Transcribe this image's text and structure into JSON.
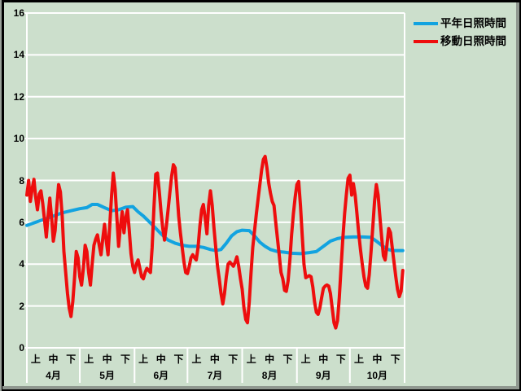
{
  "app": {
    "background_color": "#ccdfcc",
    "frame_color": "#000000",
    "bevel_color": "#8f978f",
    "gridline_color": "#ffffff",
    "text_color": "#000000"
  },
  "legend": {
    "items": [
      {
        "label": "平年日照時間",
        "color": "#12a3e0"
      },
      {
        "label": "移動日照時間",
        "color": "#ee0d0d"
      }
    ]
  },
  "chart_data": {
    "type": "line",
    "title": "",
    "xlabel": "",
    "ylabel": "",
    "ylim": [
      0,
      16
    ],
    "yticks": [
      0,
      2,
      4,
      6,
      8,
      10,
      12,
      14,
      16
    ],
    "grid": true,
    "legend_position": "top-right",
    "x_axis": {
      "unit": "day-of-season (April 1 = 0)",
      "period_labels": [
        "上",
        "中",
        "下"
      ],
      "months": [
        {
          "label": "4月",
          "days": 30
        },
        {
          "label": "5月",
          "days": 31
        },
        {
          "label": "6月",
          "days": 30
        },
        {
          "label": "7月",
          "days": 31
        },
        {
          "label": "8月",
          "days": 31
        },
        {
          "label": "9月",
          "days": 30
        },
        {
          "label": "10月",
          "days": 31
        }
      ]
    },
    "series": [
      {
        "name": "平年日照時間",
        "color": "#12a3e0",
        "stroke_width": 4,
        "points": [
          [
            0,
            5.85
          ],
          [
            5,
            6.0
          ],
          [
            10,
            6.15
          ],
          [
            15,
            6.3
          ],
          [
            20,
            6.45
          ],
          [
            25,
            6.55
          ],
          [
            30,
            6.65
          ],
          [
            34,
            6.7
          ],
          [
            37,
            6.85
          ],
          [
            40,
            6.85
          ],
          [
            44,
            6.7
          ],
          [
            48,
            6.55
          ],
          [
            52,
            6.6
          ],
          [
            56,
            6.72
          ],
          [
            60,
            6.75
          ],
          [
            63,
            6.5
          ],
          [
            66,
            6.3
          ],
          [
            69,
            6.05
          ],
          [
            72,
            5.8
          ],
          [
            76,
            5.45
          ],
          [
            80,
            5.15
          ],
          [
            84,
            5.0
          ],
          [
            88,
            4.9
          ],
          [
            92,
            4.85
          ],
          [
            96,
            4.85
          ],
          [
            100,
            4.8
          ],
          [
            104,
            4.7
          ],
          [
            107,
            4.65
          ],
          [
            110,
            4.7
          ],
          [
            113,
            5.0
          ],
          [
            116,
            5.35
          ],
          [
            119,
            5.55
          ],
          [
            122,
            5.62
          ],
          [
            126,
            5.6
          ],
          [
            129,
            5.35
          ],
          [
            132,
            5.05
          ],
          [
            135,
            4.85
          ],
          [
            138,
            4.7
          ],
          [
            142,
            4.6
          ],
          [
            146,
            4.57
          ],
          [
            150,
            4.52
          ],
          [
            155,
            4.5
          ],
          [
            160,
            4.55
          ],
          [
            164,
            4.6
          ],
          [
            168,
            4.85
          ],
          [
            172,
            5.1
          ],
          [
            176,
            5.22
          ],
          [
            180,
            5.28
          ],
          [
            185,
            5.3
          ],
          [
            190,
            5.3
          ],
          [
            195,
            5.28
          ],
          [
            198,
            5.1
          ],
          [
            201,
            4.9
          ],
          [
            204,
            4.72
          ],
          [
            207,
            4.65
          ],
          [
            210,
            4.65
          ],
          [
            213,
            4.65
          ]
        ]
      },
      {
        "name": "移動日照時間",
        "color": "#ee0d0d",
        "stroke_width": 4,
        "points": [
          [
            0,
            7.3
          ],
          [
            1,
            8.0
          ],
          [
            2,
            7.0
          ],
          [
            3,
            7.6
          ],
          [
            4,
            8.05
          ],
          [
            5,
            7.2
          ],
          [
            6,
            6.6
          ],
          [
            7,
            7.35
          ],
          [
            8,
            7.5
          ],
          [
            9,
            6.9
          ],
          [
            10,
            6.1
          ],
          [
            11,
            5.3
          ],
          [
            12,
            6.3
          ],
          [
            13,
            7.15
          ],
          [
            14,
            6.2
          ],
          [
            15,
            5.1
          ],
          [
            16,
            5.6
          ],
          [
            17,
            6.8
          ],
          [
            18,
            7.8
          ],
          [
            19,
            7.45
          ],
          [
            20,
            6.3
          ],
          [
            21,
            4.6
          ],
          [
            22,
            3.6
          ],
          [
            23,
            2.6
          ],
          [
            24,
            1.9
          ],
          [
            25,
            1.5
          ],
          [
            26,
            2.2
          ],
          [
            27,
            3.3
          ],
          [
            28,
            4.6
          ],
          [
            29,
            4.3
          ],
          [
            30,
            3.4
          ],
          [
            31,
            3.0
          ],
          [
            32,
            3.8
          ],
          [
            33,
            4.9
          ],
          [
            34,
            4.6
          ],
          [
            35,
            3.6
          ],
          [
            36,
            3.0
          ],
          [
            37,
            4.0
          ],
          [
            38,
            4.9
          ],
          [
            39,
            5.2
          ],
          [
            40,
            5.4
          ],
          [
            41,
            4.9
          ],
          [
            42,
            4.45
          ],
          [
            43,
            5.2
          ],
          [
            44,
            5.9
          ],
          [
            45,
            5.1
          ],
          [
            46,
            4.45
          ],
          [
            47,
            5.9
          ],
          [
            48,
            7.3
          ],
          [
            49,
            8.35
          ],
          [
            50,
            7.6
          ],
          [
            51,
            6.2
          ],
          [
            52,
            4.85
          ],
          [
            53,
            5.8
          ],
          [
            54,
            6.5
          ],
          [
            55,
            5.5
          ],
          [
            56,
            6.2
          ],
          [
            57,
            6.6
          ],
          [
            58,
            5.6
          ],
          [
            59,
            4.5
          ],
          [
            60,
            3.9
          ],
          [
            61,
            3.6
          ],
          [
            62,
            4.0
          ],
          [
            63,
            4.2
          ],
          [
            64,
            3.8
          ],
          [
            65,
            3.4
          ],
          [
            66,
            3.3
          ],
          [
            67,
            3.6
          ],
          [
            68,
            3.8
          ],
          [
            69,
            3.7
          ],
          [
            70,
            3.6
          ],
          [
            71,
            4.8
          ],
          [
            72,
            6.7
          ],
          [
            73,
            8.3
          ],
          [
            74,
            8.35
          ],
          [
            75,
            7.5
          ],
          [
            76,
            6.5
          ],
          [
            77,
            5.7
          ],
          [
            78,
            5.15
          ],
          [
            79,
            5.8
          ],
          [
            80,
            6.6
          ],
          [
            81,
            7.4
          ],
          [
            82,
            8.2
          ],
          [
            83,
            8.75
          ],
          [
            84,
            8.6
          ],
          [
            85,
            7.5
          ],
          [
            86,
            6.3
          ],
          [
            87,
            5.5
          ],
          [
            88,
            4.8
          ],
          [
            89,
            4.1
          ],
          [
            90,
            3.6
          ],
          [
            91,
            3.55
          ],
          [
            92,
            3.9
          ],
          [
            93,
            4.3
          ],
          [
            94,
            4.45
          ],
          [
            95,
            4.3
          ],
          [
            96,
            4.2
          ],
          [
            97,
            4.8
          ],
          [
            98,
            5.8
          ],
          [
            99,
            6.6
          ],
          [
            100,
            6.85
          ],
          [
            101,
            6.2
          ],
          [
            102,
            5.45
          ],
          [
            103,
            6.8
          ],
          [
            104,
            7.5
          ],
          [
            105,
            6.8
          ],
          [
            106,
            5.75
          ],
          [
            107,
            4.8
          ],
          [
            108,
            3.9
          ],
          [
            109,
            3.3
          ],
          [
            110,
            2.6
          ],
          [
            111,
            2.1
          ],
          [
            112,
            2.6
          ],
          [
            113,
            3.4
          ],
          [
            114,
            4.0
          ],
          [
            115,
            4.1
          ],
          [
            116,
            4.0
          ],
          [
            117,
            3.9
          ],
          [
            118,
            4.1
          ],
          [
            119,
            4.35
          ],
          [
            120,
            3.9
          ],
          [
            121,
            3.3
          ],
          [
            122,
            2.8
          ],
          [
            123,
            1.9
          ],
          [
            124,
            1.35
          ],
          [
            125,
            1.2
          ],
          [
            126,
            2.2
          ],
          [
            127,
            3.6
          ],
          [
            128,
            4.8
          ],
          [
            129,
            5.6
          ],
          [
            130,
            6.4
          ],
          [
            131,
            7.1
          ],
          [
            132,
            7.8
          ],
          [
            133,
            8.5
          ],
          [
            134,
            9.0
          ],
          [
            135,
            9.15
          ],
          [
            136,
            8.6
          ],
          [
            137,
            7.9
          ],
          [
            138,
            7.4
          ],
          [
            139,
            7.0
          ],
          [
            140,
            6.8
          ],
          [
            141,
            6.0
          ],
          [
            142,
            5.2
          ],
          [
            143,
            4.4
          ],
          [
            144,
            3.6
          ],
          [
            145,
            3.3
          ],
          [
            146,
            2.75
          ],
          [
            147,
            2.7
          ],
          [
            148,
            3.2
          ],
          [
            149,
            4.2
          ],
          [
            150,
            5.4
          ],
          [
            151,
            6.4
          ],
          [
            152,
            7.2
          ],
          [
            153,
            7.8
          ],
          [
            154,
            7.95
          ],
          [
            155,
            6.8
          ],
          [
            156,
            5.4
          ],
          [
            157,
            4.0
          ],
          [
            158,
            3.35
          ],
          [
            159,
            3.4
          ],
          [
            160,
            3.45
          ],
          [
            161,
            3.4
          ],
          [
            162,
            2.9
          ],
          [
            163,
            2.2
          ],
          [
            164,
            1.7
          ],
          [
            165,
            1.6
          ],
          [
            166,
            1.9
          ],
          [
            167,
            2.4
          ],
          [
            168,
            2.85
          ],
          [
            169,
            2.95
          ],
          [
            170,
            3.0
          ],
          [
            171,
            2.95
          ],
          [
            172,
            2.6
          ],
          [
            173,
            1.9
          ],
          [
            174,
            1.2
          ],
          [
            175,
            0.95
          ],
          [
            176,
            1.3
          ],
          [
            177,
            2.4
          ],
          [
            178,
            3.8
          ],
          [
            179,
            5.2
          ],
          [
            180,
            6.4
          ],
          [
            181,
            7.3
          ],
          [
            182,
            8.1
          ],
          [
            183,
            8.25
          ],
          [
            184,
            7.3
          ],
          [
            185,
            7.85
          ],
          [
            186,
            7.3
          ],
          [
            187,
            6.4
          ],
          [
            188,
            5.5
          ],
          [
            189,
            4.7
          ],
          [
            190,
            4.0
          ],
          [
            191,
            3.4
          ],
          [
            192,
            2.95
          ],
          [
            193,
            2.85
          ],
          [
            194,
            3.5
          ],
          [
            195,
            4.6
          ],
          [
            196,
            5.8
          ],
          [
            197,
            7.0
          ],
          [
            198,
            7.8
          ],
          [
            199,
            7.3
          ],
          [
            200,
            6.3
          ],
          [
            201,
            5.3
          ],
          [
            202,
            4.4
          ],
          [
            203,
            4.2
          ],
          [
            204,
            4.9
          ],
          [
            205,
            5.7
          ],
          [
            206,
            5.5
          ],
          [
            207,
            4.8
          ],
          [
            208,
            4.1
          ],
          [
            209,
            3.4
          ],
          [
            210,
            2.8
          ],
          [
            211,
            2.45
          ],
          [
            212,
            2.7
          ],
          [
            213,
            3.7
          ]
        ]
      }
    ]
  }
}
